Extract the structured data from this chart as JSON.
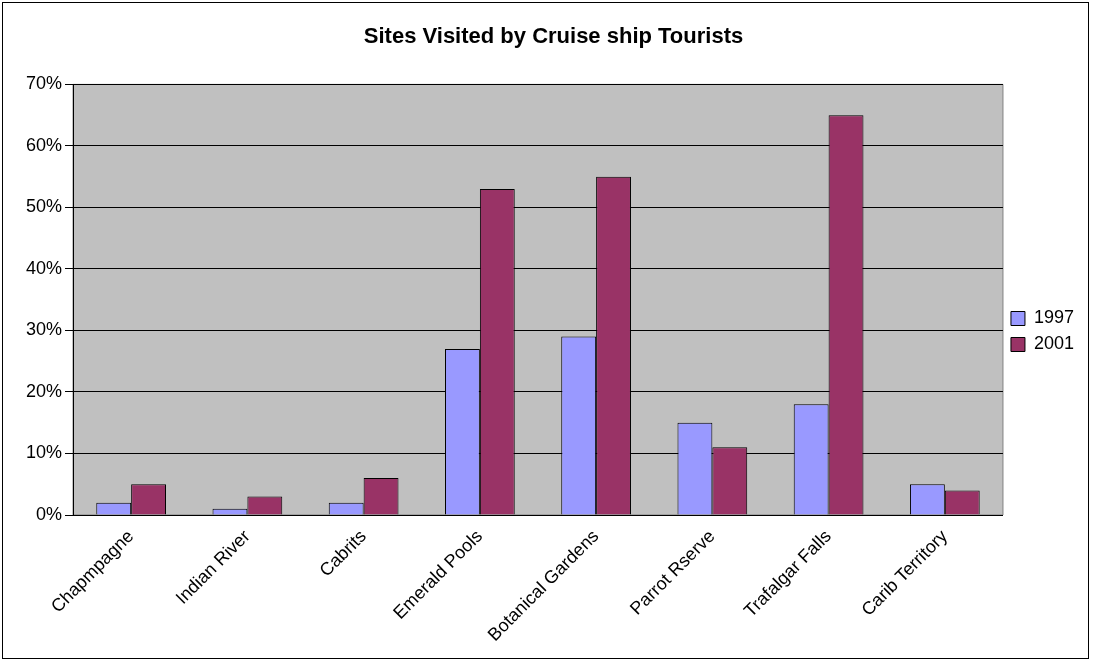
{
  "chart_data": {
    "type": "bar",
    "title": "Sites Visited by Cruise ship Tourists",
    "categories": [
      "Chapmpagne",
      "Indian River",
      "Cabrits",
      "Emerald Pools",
      "Botanical Gardens",
      "Parrot Rserve",
      "Trafalgar Falls",
      "Carib Territory"
    ],
    "series": [
      {
        "name": "1997",
        "color": "#9999ff",
        "values": [
          2,
          1,
          2,
          27,
          29,
          15,
          18,
          5
        ]
      },
      {
        "name": "2001",
        "color": "#993366",
        "values": [
          5,
          3,
          6,
          53,
          55,
          11,
          65,
          4
        ]
      }
    ],
    "ylim": [
      0,
      70
    ],
    "yticks": [
      {
        "value": 0,
        "label": "0%"
      },
      {
        "value": 10,
        "label": "10%"
      },
      {
        "value": 20,
        "label": "20%"
      },
      {
        "value": 30,
        "label": "30%"
      },
      {
        "value": 40,
        "label": "40%"
      },
      {
        "value": 50,
        "label": "50%"
      },
      {
        "value": 60,
        "label": "60%"
      },
      {
        "value": 70,
        "label": "70%"
      }
    ],
    "grid": "y",
    "legend": "right"
  }
}
